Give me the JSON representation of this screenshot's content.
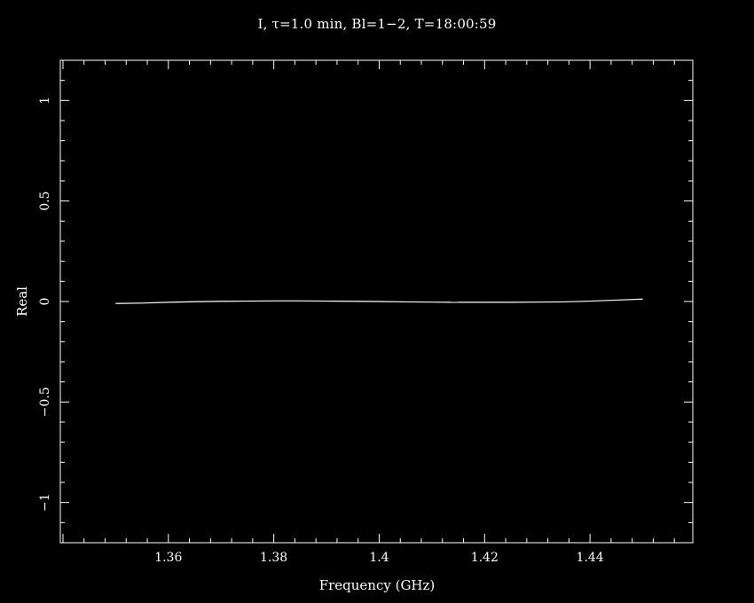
{
  "chart_data": {
    "type": "line",
    "title": "I, τ=1.0 min, Bl=1−2, T=18:00:59",
    "xlabel": "Frequency (GHz)",
    "ylabel": "Real",
    "xlim": [
      1.3395,
      1.4595
    ],
    "ylim": [
      -1.2,
      1.2
    ],
    "xticks": [
      1.36,
      1.38,
      1.4,
      1.42,
      1.44
    ],
    "xtick_labels": [
      "1.36",
      "1.38",
      "1.4",
      "1.42",
      "1.44"
    ],
    "yticks": [
      1,
      0.5,
      0,
      -0.5,
      -1
    ],
    "ytick_labels": [
      "1",
      "0.5",
      "0",
      "−0.5",
      "−1"
    ],
    "grid": false,
    "background": "#000000",
    "foreground": "#ffffff",
    "series": [
      {
        "x": [
          1.35,
          1.355,
          1.36,
          1.365,
          1.37,
          1.375,
          1.38,
          1.385,
          1.39,
          1.395,
          1.4,
          1.405,
          1.41,
          1.415,
          1.42,
          1.425,
          1.43,
          1.435,
          1.44,
          1.445,
          1.45
        ],
        "y": [
          -0.01,
          -0.008,
          -0.004,
          -0.001,
          0.001,
          0.002,
          0.003,
          0.003,
          0.002,
          0.001,
          0.0,
          -0.002,
          -0.003,
          -0.004,
          -0.004,
          -0.004,
          -0.003,
          -0.002,
          0.002,
          0.007,
          0.012
        ]
      }
    ]
  }
}
